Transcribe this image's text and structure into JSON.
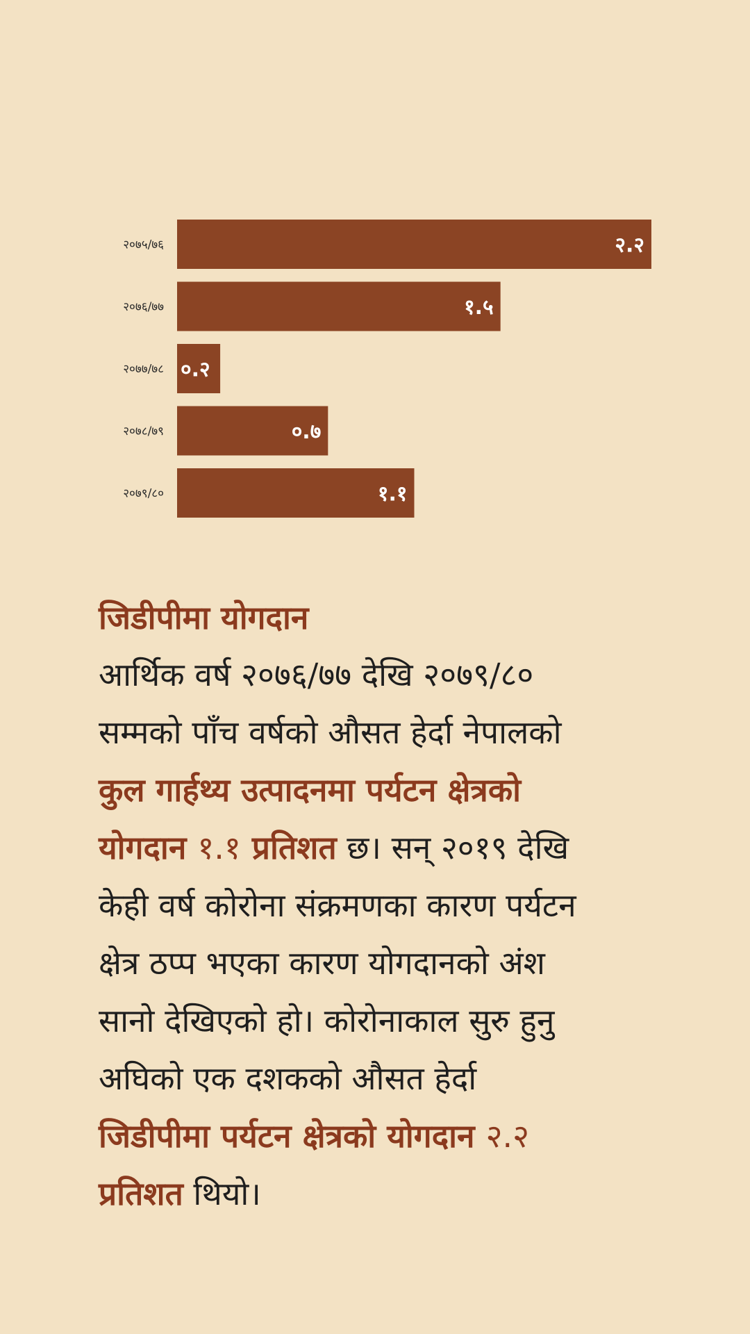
{
  "colors": {
    "background": "#f3e2c4",
    "bar": "#8b4424",
    "accent": "#8b3a1e",
    "text": "#1e1e1e"
  },
  "chart_data": {
    "type": "bar",
    "orientation": "horizontal",
    "categories": [
      "२०७५/७६",
      "२०७६/७७",
      "२०७७/७८",
      "२०७८/७९",
      "२०७९/८०"
    ],
    "values": [
      2.2,
      1.5,
      0.2,
      0.7,
      1.1
    ],
    "value_labels": [
      "२.२",
      "१.५",
      "०.२",
      "०.७",
      "१.१"
    ],
    "xlim": [
      0,
      2.2
    ],
    "grid": false,
    "legend": "none"
  },
  "article": {
    "heading": "जिडीपीमा योगदान",
    "lines": [
      [
        {
          "t": "आर्थिक वर्ष २०७६/७७ देखि २०७९/८०"
        }
      ],
      [
        {
          "t": "सम्मको पाँच वर्षको औसत हेर्दा नेपालको"
        }
      ],
      [
        {
          "t": "कुल गार्हथ्य उत्पादनमा पर्यटन क्षेत्रको",
          "s": "hl"
        }
      ],
      [
        {
          "t": "योगदान ",
          "s": "hl"
        },
        {
          "t": "१.१",
          "s": "hl-num"
        },
        {
          "t": " प्रतिशत",
          "s": "hl"
        },
        {
          "t": " छ। सन् २०१९ देखि"
        }
      ],
      [
        {
          "t": "केही वर्ष कोरोना संक्रमणका कारण पर्यटन"
        }
      ],
      [
        {
          "t": "क्षेत्र ठप्प भएका कारण योगदानको अंश"
        }
      ],
      [
        {
          "t": "सानो देखिएको हो। कोरोनाकाल सुरु हुनु"
        }
      ],
      [
        {
          "t": "अघिको एक दशकको औसत हेर्दा"
        }
      ],
      [
        {
          "t": "जिडीपीमा पर्यटन क्षेत्रको योगदान ",
          "s": "hl"
        },
        {
          "t": "२.२",
          "s": "hl-num"
        }
      ],
      [
        {
          "t": "प्रतिशत",
          "s": "hl"
        },
        {
          "t": " थियो।"
        }
      ]
    ]
  }
}
